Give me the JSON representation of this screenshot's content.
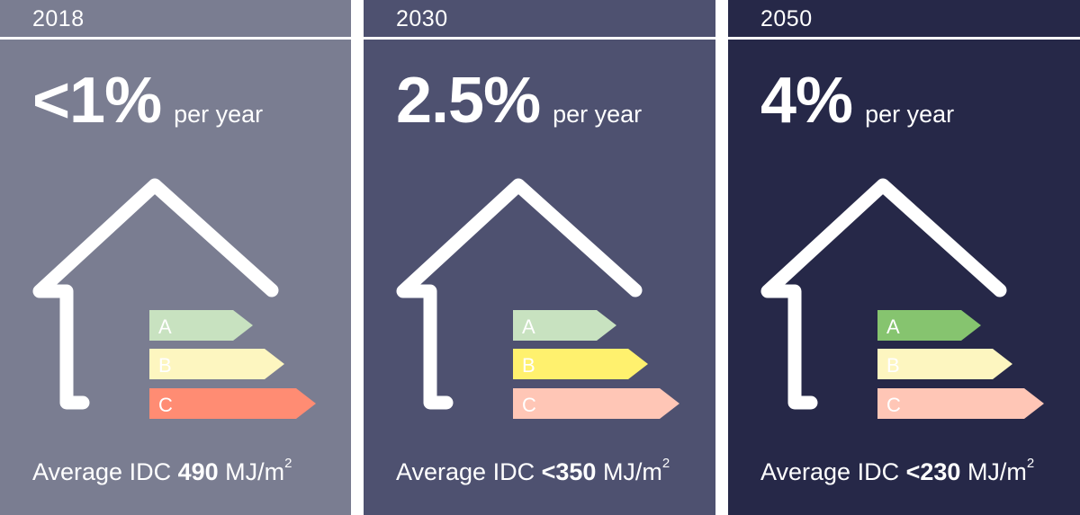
{
  "panels": [
    {
      "year": "2018",
      "rate_value": "<1%",
      "rate_unit": "per year",
      "caption_prefix": "Average IDC",
      "caption_value": "490",
      "caption_unit": "MJ/m",
      "caption_exponent": "2",
      "background_color": "#7a7d91",
      "labels": [
        {
          "letter": "A",
          "color": "#c8e2c0"
        },
        {
          "letter": "B",
          "color": "#fdf6c0"
        },
        {
          "letter": "C",
          "color": "#ff8c73"
        }
      ]
    },
    {
      "year": "2030",
      "rate_value": "2.5%",
      "rate_unit": "per year",
      "caption_prefix": "Average IDC",
      "caption_value": "<350",
      "caption_unit": "MJ/m",
      "caption_exponent": "2",
      "background_color": "#4e5170",
      "labels": [
        {
          "letter": "A",
          "color": "#c8e2c0"
        },
        {
          "letter": "B",
          "color": "#fff16e"
        },
        {
          "letter": "C",
          "color": "#ffc6b6"
        }
      ]
    },
    {
      "year": "2050",
      "rate_value": "4%",
      "rate_unit": "per year",
      "caption_prefix": "Average IDC",
      "caption_value": "<230",
      "caption_unit": "MJ/m",
      "caption_exponent": "2",
      "background_color": "#262848",
      "labels": [
        {
          "letter": "A",
          "color": "#86c46f"
        },
        {
          "letter": "B",
          "color": "#fdf6c0"
        },
        {
          "letter": "C",
          "color": "#ffc6b6"
        }
      ]
    }
  ]
}
